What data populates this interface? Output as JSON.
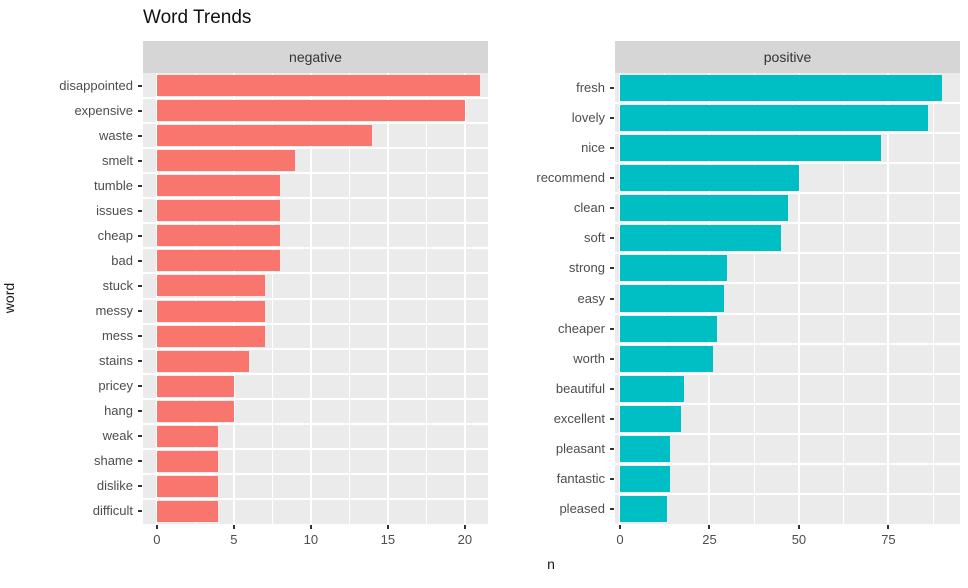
{
  "title": "Word Trends",
  "axis": {
    "x_title": "n",
    "y_title": "word"
  },
  "colors": {
    "negative_bar": "#F8766D",
    "positive_bar": "#00BFC4",
    "panel_bg": "#EBEBEB",
    "strip_bg": "#D6D6D6",
    "grid": "#FFFFFF",
    "tick_text": "#4D4D4D"
  },
  "chart_data": [
    {
      "type": "bar",
      "orientation": "horizontal",
      "facet": "negative",
      "categories": [
        "disappointed",
        "expensive",
        "waste",
        "smelt",
        "tumble",
        "issues",
        "cheap",
        "bad",
        "stuck",
        "messy",
        "mess",
        "stains",
        "pricey",
        "hang",
        "weak",
        "shame",
        "dislike",
        "difficult"
      ],
      "values": [
        21,
        20,
        14,
        9,
        8,
        8,
        8,
        8,
        7,
        7,
        7,
        6,
        5,
        5,
        4,
        4,
        4,
        4
      ],
      "x_ticks": [
        0,
        5,
        10,
        15,
        20
      ],
      "x_minor_ticks": [
        2.5,
        7.5,
        12.5,
        17.5
      ],
      "xlim": [
        -0.9,
        21.5
      ],
      "bar_color": "#F8766D",
      "grid": true,
      "legend": "none"
    },
    {
      "type": "bar",
      "orientation": "horizontal",
      "facet": "positive",
      "categories": [
        "fresh",
        "lovely",
        "nice",
        "recommend",
        "clean",
        "soft",
        "strong",
        "easy",
        "cheaper",
        "worth",
        "beautiful",
        "excellent",
        "pleasant",
        "fantastic",
        "pleased"
      ],
      "values": [
        90,
        86,
        73,
        50,
        47,
        45,
        30,
        29,
        27,
        26,
        18,
        17,
        14,
        14,
        13
      ],
      "x_ticks": [
        0,
        25,
        50,
        75
      ],
      "x_minor_ticks": [
        12.5,
        37.5,
        62.5,
        87.5
      ],
      "xlim": [
        -1.4,
        95
      ],
      "bar_color": "#00BFC4",
      "grid": true,
      "legend": "none"
    }
  ]
}
